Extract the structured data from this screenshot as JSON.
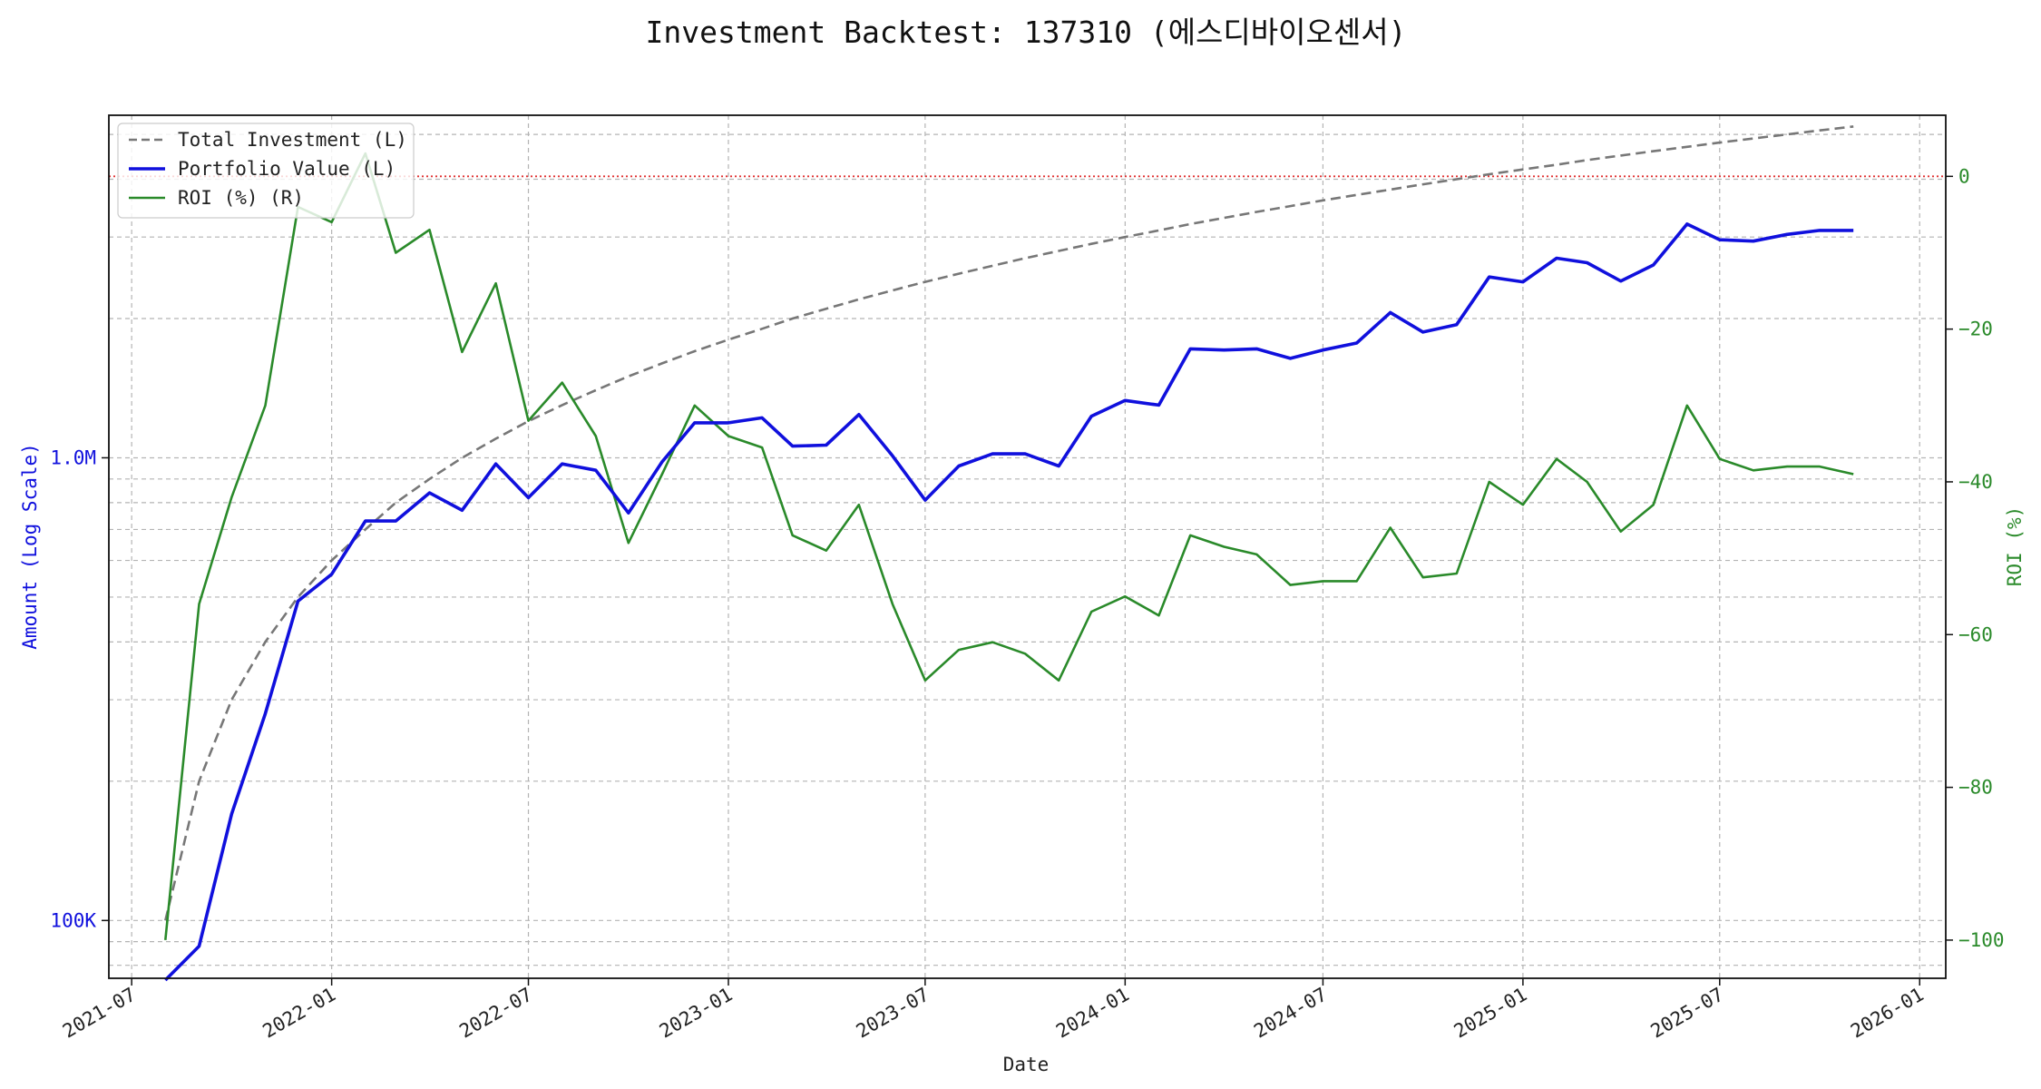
{
  "chart_data": {
    "type": "line",
    "title": "Investment Backtest: 137310 (에스디바이오센서)",
    "xlabel": "Date",
    "ylabel_left": "Amount (Log Scale)",
    "ylabel_right": "ROI (%)",
    "left_scale": "log",
    "left_ylim": [
      75000,
      5500000
    ],
    "right_ylim": [
      -105,
      8
    ],
    "xlim": [
      "2021-06-10",
      "2026-01-25"
    ],
    "x_ticks": [
      "2021-07-01",
      "2022-01-01",
      "2022-07-01",
      "2023-01-01",
      "2023-07-01",
      "2024-01-01",
      "2024-07-01",
      "2025-01-01",
      "2025-07-01",
      "2026-01-01"
    ],
    "x_tick_labels": [
      "2021-07",
      "2022-01",
      "2022-07",
      "2023-01",
      "2023-07",
      "2024-01",
      "2024-07",
      "2025-01",
      "2025-07",
      "2026-01"
    ],
    "left_ticks": [
      100000,
      1000000
    ],
    "left_tick_labels": [
      "100K",
      "1.0M"
    ],
    "right_ticks": [
      0,
      -20,
      -40,
      -60,
      -80,
      -100
    ],
    "right_tick_labels": [
      "0",
      "−20",
      "−40",
      "−60",
      "−80",
      "−100"
    ],
    "grid": true,
    "legend_position": "top-left",
    "reference_line": {
      "axis": "right",
      "y": 0,
      "color": "#e03030"
    },
    "x": [
      "2021-08-01",
      "2021-09-01",
      "2021-10-01",
      "2021-11-01",
      "2021-12-01",
      "2022-01-01",
      "2022-02-01",
      "2022-03-01",
      "2022-04-01",
      "2022-05-01",
      "2022-06-01",
      "2022-07-01",
      "2022-08-01",
      "2022-09-01",
      "2022-10-01",
      "2022-11-01",
      "2022-12-01",
      "2023-01-01",
      "2023-02-01",
      "2023-03-01",
      "2023-04-01",
      "2023-05-01",
      "2023-06-01",
      "2023-07-01",
      "2023-08-01",
      "2023-09-01",
      "2023-10-01",
      "2023-11-01",
      "2023-12-01",
      "2024-01-01",
      "2024-02-01",
      "2024-03-01",
      "2024-04-01",
      "2024-05-01",
      "2024-06-01",
      "2024-07-01",
      "2024-08-01",
      "2024-09-01",
      "2024-10-01",
      "2024-11-01",
      "2024-12-01",
      "2025-01-01",
      "2025-02-01",
      "2025-03-01",
      "2025-04-01",
      "2025-05-01",
      "2025-06-01",
      "2025-07-01",
      "2025-08-01",
      "2025-09-01",
      "2025-10-01",
      "2025-11-01"
    ],
    "series": [
      {
        "name": "Total Investment (L)",
        "axis": "left",
        "color": "#777777",
        "style": "dashed",
        "values": [
          100000,
          200000,
          300000,
          400000,
          500000,
          600000,
          700000,
          800000,
          900000,
          1000000,
          1100000,
          1200000,
          1300000,
          1400000,
          1500000,
          1600000,
          1700000,
          1800000,
          1900000,
          2000000,
          2100000,
          2200000,
          2300000,
          2400000,
          2500000,
          2600000,
          2700000,
          2800000,
          2900000,
          3000000,
          3100000,
          3200000,
          3300000,
          3400000,
          3500000,
          3600000,
          3700000,
          3800000,
          3900000,
          4000000,
          4100000,
          4200000,
          4300000,
          4400000,
          4500000,
          4600000,
          4700000,
          4800000,
          4900000,
          5000000,
          5100000,
          5200000
        ]
      },
      {
        "name": "Portfolio Value (L)",
        "axis": "left",
        "color": "#1010dd",
        "style": "solid",
        "values": [
          1200,
          88000,
          170000,
          280000,
          490000,
          560000,
          730000,
          730000,
          840000,
          770000,
          970000,
          820000,
          970000,
          940000,
          760000,
          980000,
          1190000,
          1190000,
          1220000,
          1060000,
          1065000,
          1240000,
          1010000,
          810000,
          960000,
          1020000,
          1020000,
          960000,
          1230000,
          1330000,
          1300000,
          1720000,
          1710000,
          1720000,
          1640000,
          1710000,
          1770000,
          2060000,
          1870000,
          1940000,
          2460000,
          2400000,
          2700000,
          2640000,
          2410000,
          2610000,
          3200000,
          2960000,
          2940000,
          3040000,
          3100000,
          3100000
        ]
      },
      {
        "name": "ROI (%) (R)",
        "axis": "right",
        "color": "#2a8a2a",
        "style": "solid",
        "values": [
          -100,
          -56,
          -42,
          -30,
          -4,
          -6,
          3,
          -10,
          -7,
          -23,
          -14,
          -32,
          -27,
          -34,
          -48,
          -39,
          -30,
          -34,
          -35.5,
          -47,
          -49,
          -43,
          -56,
          -66,
          -62,
          -61,
          -62.5,
          -66,
          -57,
          -55,
          -57.5,
          -47,
          -48.5,
          -49.5,
          -53.5,
          -53,
          -53,
          -46,
          -52.5,
          -52,
          -40,
          -43,
          -37,
          -40,
          -46.5,
          -43,
          -30,
          -37,
          -38.5,
          -38,
          -38,
          -39
        ]
      }
    ]
  }
}
